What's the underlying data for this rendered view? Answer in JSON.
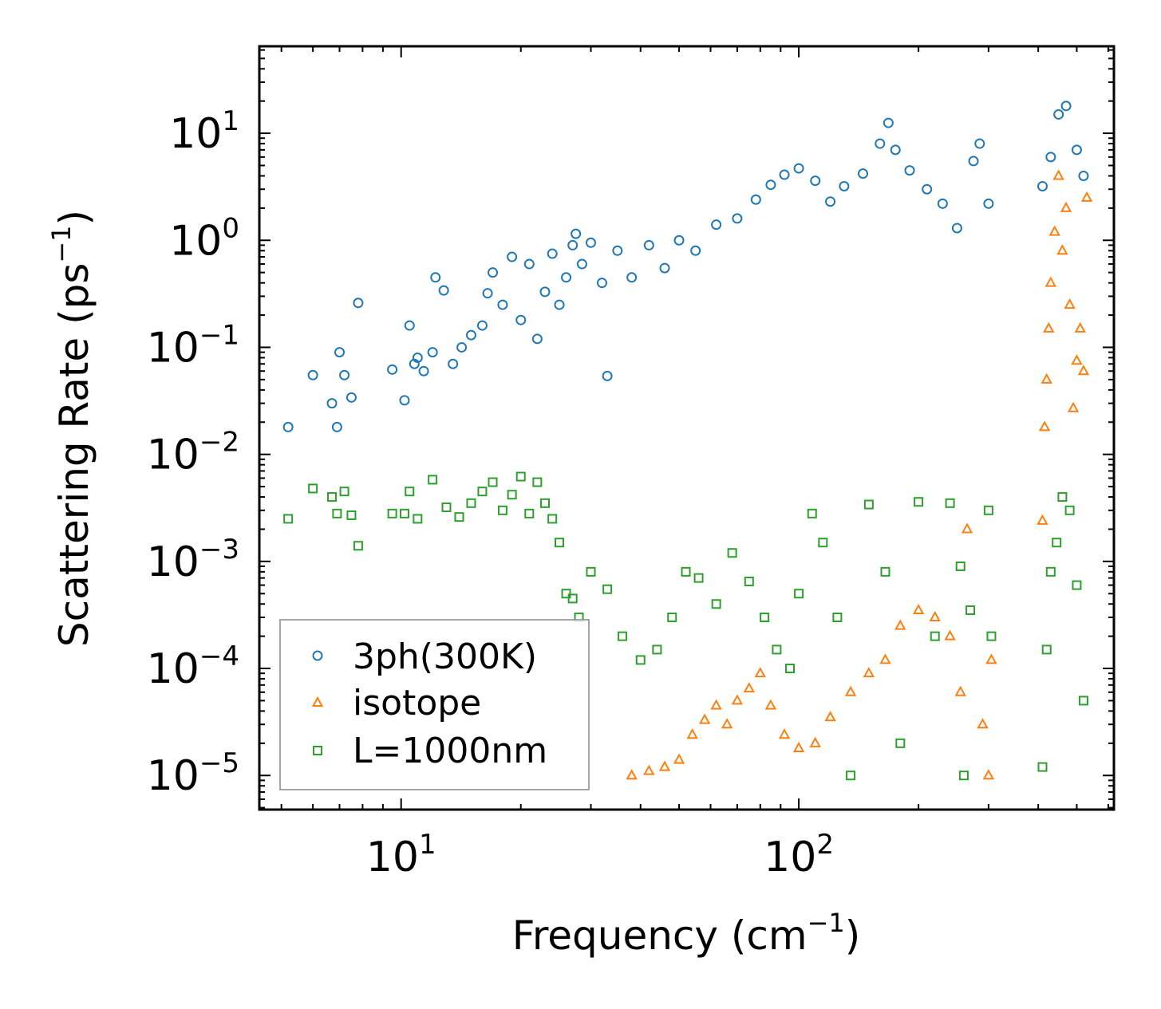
{
  "chart_data": {
    "type": "scatter",
    "xscale": "log",
    "yscale": "log",
    "xlim": [
      4.4,
      620
    ],
    "ylim": [
      4.8e-06,
      65
    ],
    "xlabel": {
      "base": "Frequency (cm",
      "sup": "−1",
      "tail": ")"
    },
    "ylabel": {
      "base": "Scattering Rate (ps",
      "sup": "−1",
      "tail": ")"
    },
    "x_ticks": [
      {
        "value": 10,
        "base": "10",
        "exp": "1"
      },
      {
        "value": 100,
        "base": "10",
        "exp": "2"
      }
    ],
    "y_ticks": [
      {
        "value": 10,
        "base": "10",
        "exp": "1"
      },
      {
        "value": 1,
        "base": "10",
        "exp": "0"
      },
      {
        "value": 0.1,
        "base": "10",
        "exp": "−1"
      },
      {
        "value": 0.01,
        "base": "10",
        "exp": "−2"
      },
      {
        "value": 0.001,
        "base": "10",
        "exp": "−3"
      },
      {
        "value": 0.0001,
        "base": "10",
        "exp": "−4"
      },
      {
        "value": 1e-05,
        "base": "10",
        "exp": "−5"
      }
    ],
    "legend_position": "lower-left",
    "series": [
      {
        "name": "3ph(300K)",
        "marker": "circle",
        "color": "#1f77b4",
        "points": [
          [
            5.2,
            0.018
          ],
          [
            6.0,
            0.055
          ],
          [
            6.7,
            0.03
          ],
          [
            6.9,
            0.018
          ],
          [
            7.0,
            0.09
          ],
          [
            7.2,
            0.055
          ],
          [
            7.5,
            0.034
          ],
          [
            7.8,
            0.26
          ],
          [
            9.5,
            0.062
          ],
          [
            10.2,
            0.032
          ],
          [
            10.5,
            0.16
          ],
          [
            10.8,
            0.07
          ],
          [
            11.0,
            0.08
          ],
          [
            11.4,
            0.06
          ],
          [
            12.0,
            0.09
          ],
          [
            12.2,
            0.45
          ],
          [
            12.8,
            0.34
          ],
          [
            13.5,
            0.07
          ],
          [
            14.2,
            0.1
          ],
          [
            15.0,
            0.13
          ],
          [
            16.0,
            0.16
          ],
          [
            16.5,
            0.32
          ],
          [
            17.0,
            0.5
          ],
          [
            18.0,
            0.25
          ],
          [
            19.0,
            0.7
          ],
          [
            20.0,
            0.18
          ],
          [
            21.0,
            0.6
          ],
          [
            22.0,
            0.12
          ],
          [
            23.0,
            0.33
          ],
          [
            24.0,
            0.75
          ],
          [
            25.0,
            0.25
          ],
          [
            26.0,
            0.45
          ],
          [
            27.0,
            0.9
          ],
          [
            27.5,
            1.15
          ],
          [
            28.5,
            0.6
          ],
          [
            30.0,
            0.95
          ],
          [
            32.0,
            0.4
          ],
          [
            33.0,
            0.054
          ],
          [
            35.0,
            0.8
          ],
          [
            38.0,
            0.45
          ],
          [
            42.0,
            0.9
          ],
          [
            46.0,
            0.55
          ],
          [
            50.0,
            1.0
          ],
          [
            55.0,
            0.8
          ],
          [
            62.0,
            1.4
          ],
          [
            70.0,
            1.6
          ],
          [
            78.0,
            2.4
          ],
          [
            85.0,
            3.3
          ],
          [
            92.0,
            4.1
          ],
          [
            100.0,
            4.7
          ],
          [
            110.0,
            3.6
          ],
          [
            120.0,
            2.3
          ],
          [
            130.0,
            3.2
          ],
          [
            145.0,
            4.2
          ],
          [
            160.0,
            8.0
          ],
          [
            168.0,
            12.5
          ],
          [
            175.0,
            7.0
          ],
          [
            190.0,
            4.5
          ],
          [
            210.0,
            3.0
          ],
          [
            230.0,
            2.2
          ],
          [
            250.0,
            1.3
          ],
          [
            275.0,
            5.5
          ],
          [
            285.0,
            8.0
          ],
          [
            300.0,
            2.2
          ],
          [
            410.0,
            3.2
          ],
          [
            430.0,
            6.0
          ],
          [
            450.0,
            15.0
          ],
          [
            470.0,
            18.0
          ],
          [
            500.0,
            7.0
          ],
          [
            520.0,
            4.0
          ]
        ]
      },
      {
        "name": "isotope",
        "marker": "triangle",
        "color": "#ff7f0e",
        "points": [
          [
            38.0,
            1e-05
          ],
          [
            42.0,
            1.1e-05
          ],
          [
            46.0,
            1.2e-05
          ],
          [
            50.0,
            1.4e-05
          ],
          [
            54.0,
            2.4e-05
          ],
          [
            58.0,
            3.3e-05
          ],
          [
            62.0,
            4.5e-05
          ],
          [
            66.0,
            3e-05
          ],
          [
            70.0,
            5e-05
          ],
          [
            75.0,
            6.5e-05
          ],
          [
            80.0,
            9e-05
          ],
          [
            85.0,
            4.5e-05
          ],
          [
            92.0,
            2.4e-05
          ],
          [
            100.0,
            1.8e-05
          ],
          [
            110.0,
            2e-05
          ],
          [
            120.0,
            3.5e-05
          ],
          [
            135.0,
            6e-05
          ],
          [
            150.0,
            9e-05
          ],
          [
            165.0,
            0.00012
          ],
          [
            180.0,
            0.00025
          ],
          [
            200.0,
            0.00035
          ],
          [
            220.0,
            0.0003
          ],
          [
            240.0,
            0.0002
          ],
          [
            255.0,
            6e-05
          ],
          [
            265.0,
            0.002
          ],
          [
            290.0,
            3e-05
          ],
          [
            300.0,
            1e-05
          ],
          [
            305.0,
            0.00012
          ],
          [
            410.0,
            0.0024
          ],
          [
            415.0,
            0.018
          ],
          [
            420.0,
            0.05
          ],
          [
            425.0,
            0.15
          ],
          [
            430.0,
            0.4
          ],
          [
            440.0,
            1.2
          ],
          [
            450.0,
            4.0
          ],
          [
            460.0,
            0.8
          ],
          [
            470.0,
            2.0
          ],
          [
            480.0,
            0.25
          ],
          [
            490.0,
            0.027
          ],
          [
            500.0,
            0.075
          ],
          [
            510.0,
            0.15
          ],
          [
            520.0,
            0.06
          ],
          [
            530.0,
            2.5
          ]
        ]
      },
      {
        "name": "L=1000nm",
        "marker": "square",
        "color": "#2ca02c",
        "points": [
          [
            5.2,
            0.0025
          ],
          [
            6.0,
            0.0048
          ],
          [
            6.7,
            0.004
          ],
          [
            6.9,
            0.0028
          ],
          [
            7.2,
            0.0045
          ],
          [
            7.5,
            0.0027
          ],
          [
            7.8,
            0.0014
          ],
          [
            9.5,
            0.0028
          ],
          [
            10.2,
            0.0028
          ],
          [
            10.5,
            0.0045
          ],
          [
            11.0,
            0.0025
          ],
          [
            12.0,
            0.0058
          ],
          [
            13.0,
            0.0032
          ],
          [
            14.0,
            0.0026
          ],
          [
            15.0,
            0.0035
          ],
          [
            16.0,
            0.0045
          ],
          [
            17.0,
            0.0055
          ],
          [
            18.0,
            0.003
          ],
          [
            19.0,
            0.0042
          ],
          [
            20.0,
            0.0062
          ],
          [
            21.0,
            0.0028
          ],
          [
            22.0,
            0.0055
          ],
          [
            23.0,
            0.0035
          ],
          [
            24.0,
            0.0025
          ],
          [
            25.0,
            0.0015
          ],
          [
            26.0,
            0.0005
          ],
          [
            27.0,
            0.00045
          ],
          [
            28.0,
            0.0003
          ],
          [
            30.0,
            0.0008
          ],
          [
            33.0,
            0.00055
          ],
          [
            36.0,
            0.0002
          ],
          [
            40.0,
            0.00012
          ],
          [
            44.0,
            0.00015
          ],
          [
            48.0,
            0.0003
          ],
          [
            52.0,
            0.0008
          ],
          [
            56.0,
            0.0007
          ],
          [
            62.0,
            0.0004
          ],
          [
            68.0,
            0.0012
          ],
          [
            75.0,
            0.00065
          ],
          [
            82.0,
            0.0003
          ],
          [
            88.0,
            0.00015
          ],
          [
            95.0,
            0.0001
          ],
          [
            100.0,
            0.0005
          ],
          [
            108.0,
            0.0028
          ],
          [
            115.0,
            0.0015
          ],
          [
            125.0,
            0.0003
          ],
          [
            135.0,
            1e-05
          ],
          [
            150.0,
            0.0034
          ],
          [
            165.0,
            0.0008
          ],
          [
            180.0,
            2e-05
          ],
          [
            200.0,
            0.0036
          ],
          [
            220.0,
            0.0002
          ],
          [
            240.0,
            0.0035
          ],
          [
            255.0,
            0.0009
          ],
          [
            260.0,
            1e-05
          ],
          [
            270.0,
            0.00035
          ],
          [
            300.0,
            0.003
          ],
          [
            305.0,
            0.0002
          ],
          [
            410.0,
            1.2e-05
          ],
          [
            420.0,
            0.00015
          ],
          [
            430.0,
            0.0008
          ],
          [
            445.0,
            0.0015
          ],
          [
            460.0,
            0.004
          ],
          [
            480.0,
            0.003
          ],
          [
            500.0,
            0.0006
          ],
          [
            520.0,
            5e-05
          ]
        ]
      }
    ]
  }
}
